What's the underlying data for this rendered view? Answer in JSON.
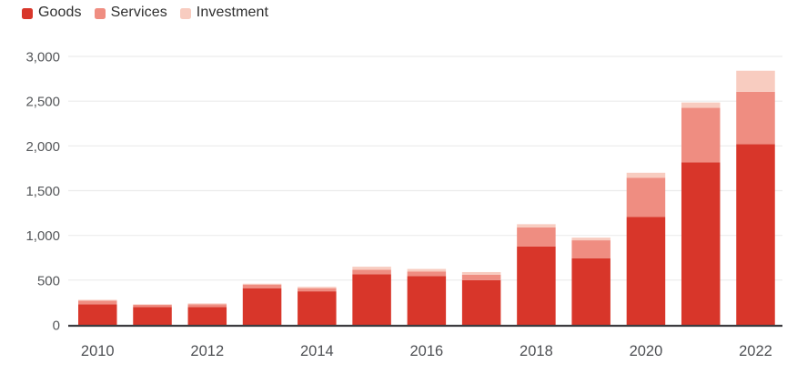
{
  "legend": {
    "items": [
      {
        "label": "Goods"
      },
      {
        "label": "Services"
      },
      {
        "label": "Investment"
      }
    ]
  },
  "chart_data": {
    "type": "bar",
    "stacked": true,
    "title": "",
    "xlabel": "",
    "ylabel": "",
    "categories": [
      "2010",
      "2011",
      "2012",
      "2013",
      "2014",
      "2015",
      "2016",
      "2017",
      "2018",
      "2019",
      "2020",
      "2021",
      "2022"
    ],
    "series": [
      {
        "name": "Goods",
        "color": "#d8362a",
        "values": [
          230,
          200,
          200,
          410,
          375,
          565,
          545,
          500,
          875,
          745,
          1205,
          1815,
          2020
        ]
      },
      {
        "name": "Services",
        "color": "#ef8d81",
        "values": [
          40,
          25,
          30,
          40,
          35,
          50,
          50,
          60,
          215,
          200,
          440,
          610,
          585
        ]
      },
      {
        "name": "Investment",
        "color": "#f8ccc0",
        "values": [
          10,
          5,
          10,
          10,
          15,
          35,
          30,
          30,
          35,
          30,
          55,
          60,
          235
        ]
      }
    ],
    "ylim": [
      0,
      3000
    ],
    "yticks": [
      0,
      500,
      1000,
      1500,
      2000,
      2500,
      3000
    ],
    "ytick_labels": [
      "0",
      "500",
      "1,000",
      "1,500",
      "2,000",
      "2,500",
      "3,000"
    ],
    "xtick_every": 2,
    "xtick_labels_shown": [
      "2010",
      "2012",
      "2014",
      "2016",
      "2018",
      "2020",
      "2022"
    ],
    "grid": true,
    "legend_position": "top-left"
  },
  "colors": {
    "background": "#ffffff",
    "gridline": "#ececec",
    "axis_line": "#3c3c40",
    "ytick_text": "#55575a",
    "xtick_text": "#4e5054",
    "legend_text": "#2e2e2e"
  }
}
